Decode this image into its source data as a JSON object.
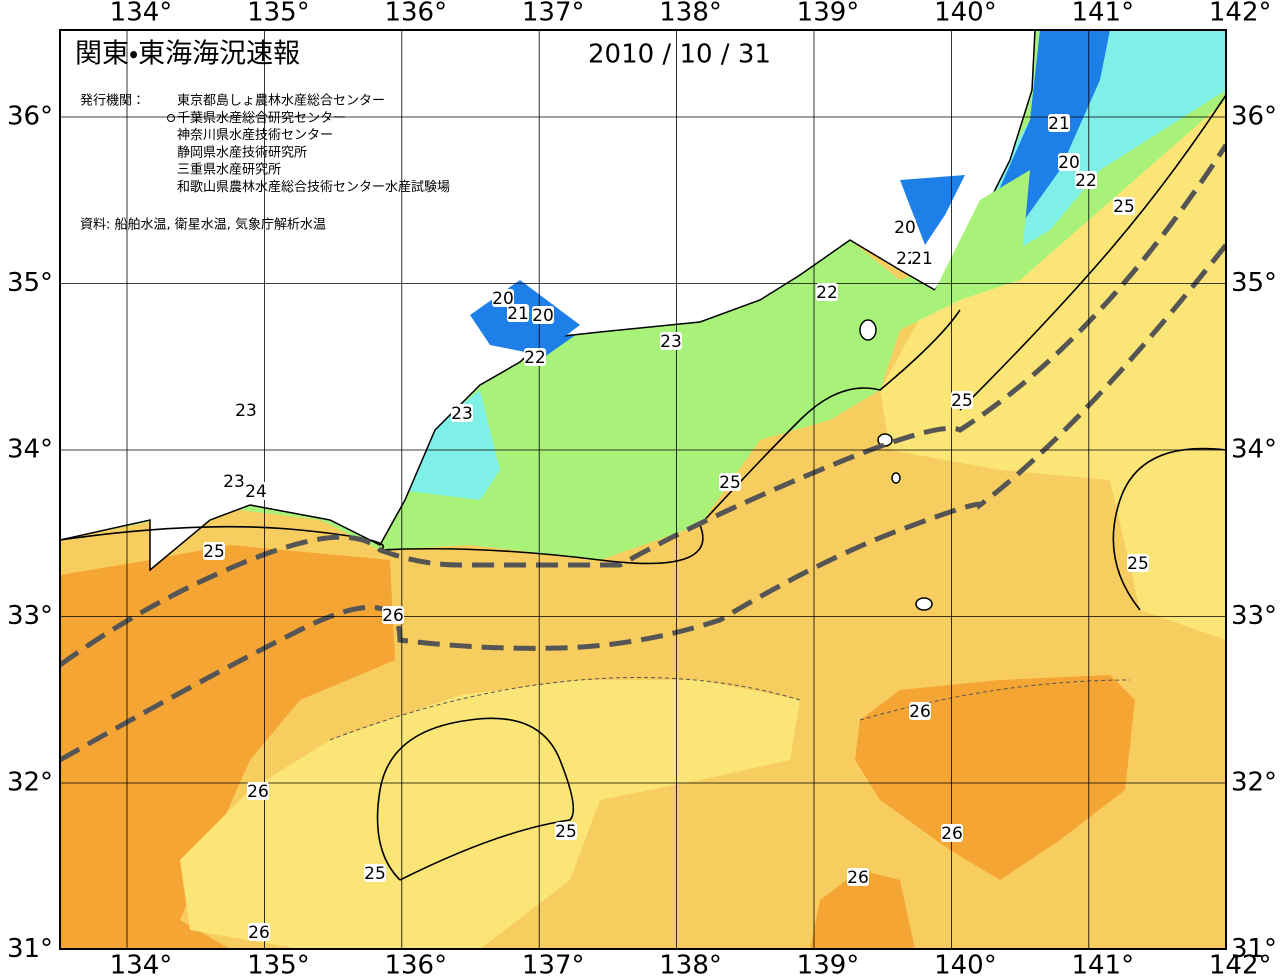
{
  "header": {
    "title": "関東・東海海況速報",
    "date": "2010 / 10 / 31",
    "publisher_label": "発行機関：",
    "publishers": [
      "東京都島しょ農林水産総合センター",
      "千葉県水産総合研究センター",
      "神奈川県水産技術センター",
      "静岡県水産技術研究所",
      "三重県水産研究所",
      "和歌山県農林水産総合技術センター水産試験場"
    ],
    "source": "資料: 船舶水温, 衛星水温, 気象庁解析水温"
  },
  "map": {
    "lon_ticks": [
      {
        "value": 134,
        "label": "134°"
      },
      {
        "value": 135,
        "label": "135°"
      },
      {
        "value": 136,
        "label": "136°"
      },
      {
        "value": 137,
        "label": "137°"
      },
      {
        "value": 138,
        "label": "138°"
      },
      {
        "value": 139,
        "label": "139°"
      },
      {
        "value": 140,
        "label": "140°"
      },
      {
        "value": 141,
        "label": "141°"
      },
      {
        "value": 142,
        "label": "142°"
      }
    ],
    "lat_ticks": [
      {
        "value": 36,
        "label": "36°"
      },
      {
        "value": 35,
        "label": "35°"
      },
      {
        "value": 34,
        "label": "34°"
      },
      {
        "value": 33,
        "label": "33°"
      },
      {
        "value": 32,
        "label": "32°"
      },
      {
        "value": 31,
        "label": "31°"
      }
    ],
    "contour_labels": [
      21,
      20,
      22,
      25,
      20,
      22,
      21,
      22,
      20,
      21,
      20,
      22,
      23,
      23,
      23,
      25,
      23,
      24,
      25,
      25,
      25,
      26,
      26,
      26,
      25,
      26,
      26,
      25,
      26
    ]
  }
}
